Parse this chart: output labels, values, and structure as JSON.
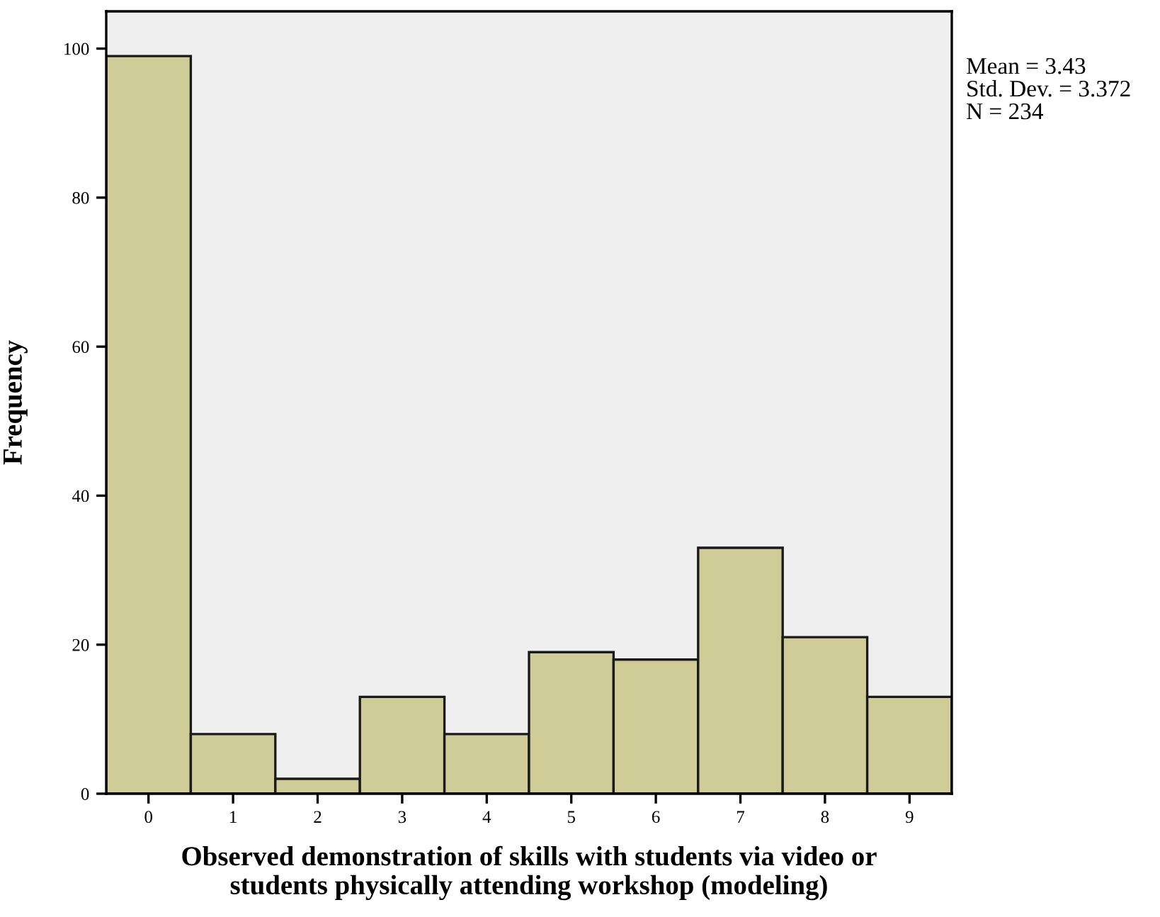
{
  "chart_data": {
    "type": "histogram",
    "xlabel": "Observed demonstration of skills with students via video or\nstudents physically attending workshop (modeling)",
    "ylabel": "Frequency",
    "bins": [
      -0.5,
      0.5,
      1.5,
      2.5,
      3.5,
      4.5,
      5.5,
      6.5,
      7.5,
      8.5,
      9.5
    ],
    "values": [
      99,
      8,
      2,
      13,
      8,
      19,
      18,
      33,
      21,
      13
    ],
    "color": "#d0cc98",
    "xlim": [
      -0.5,
      9.5
    ],
    "xticks": [
      0,
      1,
      2,
      3,
      4,
      5,
      6,
      7,
      8,
      9
    ],
    "ylim": [
      0,
      105
    ],
    "yticks": [
      0,
      20,
      40,
      60,
      80,
      100
    ],
    "grid": false,
    "legend": false,
    "annotations": [
      "Mean = 3.43",
      "Std. Dev. = 3.372",
      "N = 234"
    ]
  }
}
